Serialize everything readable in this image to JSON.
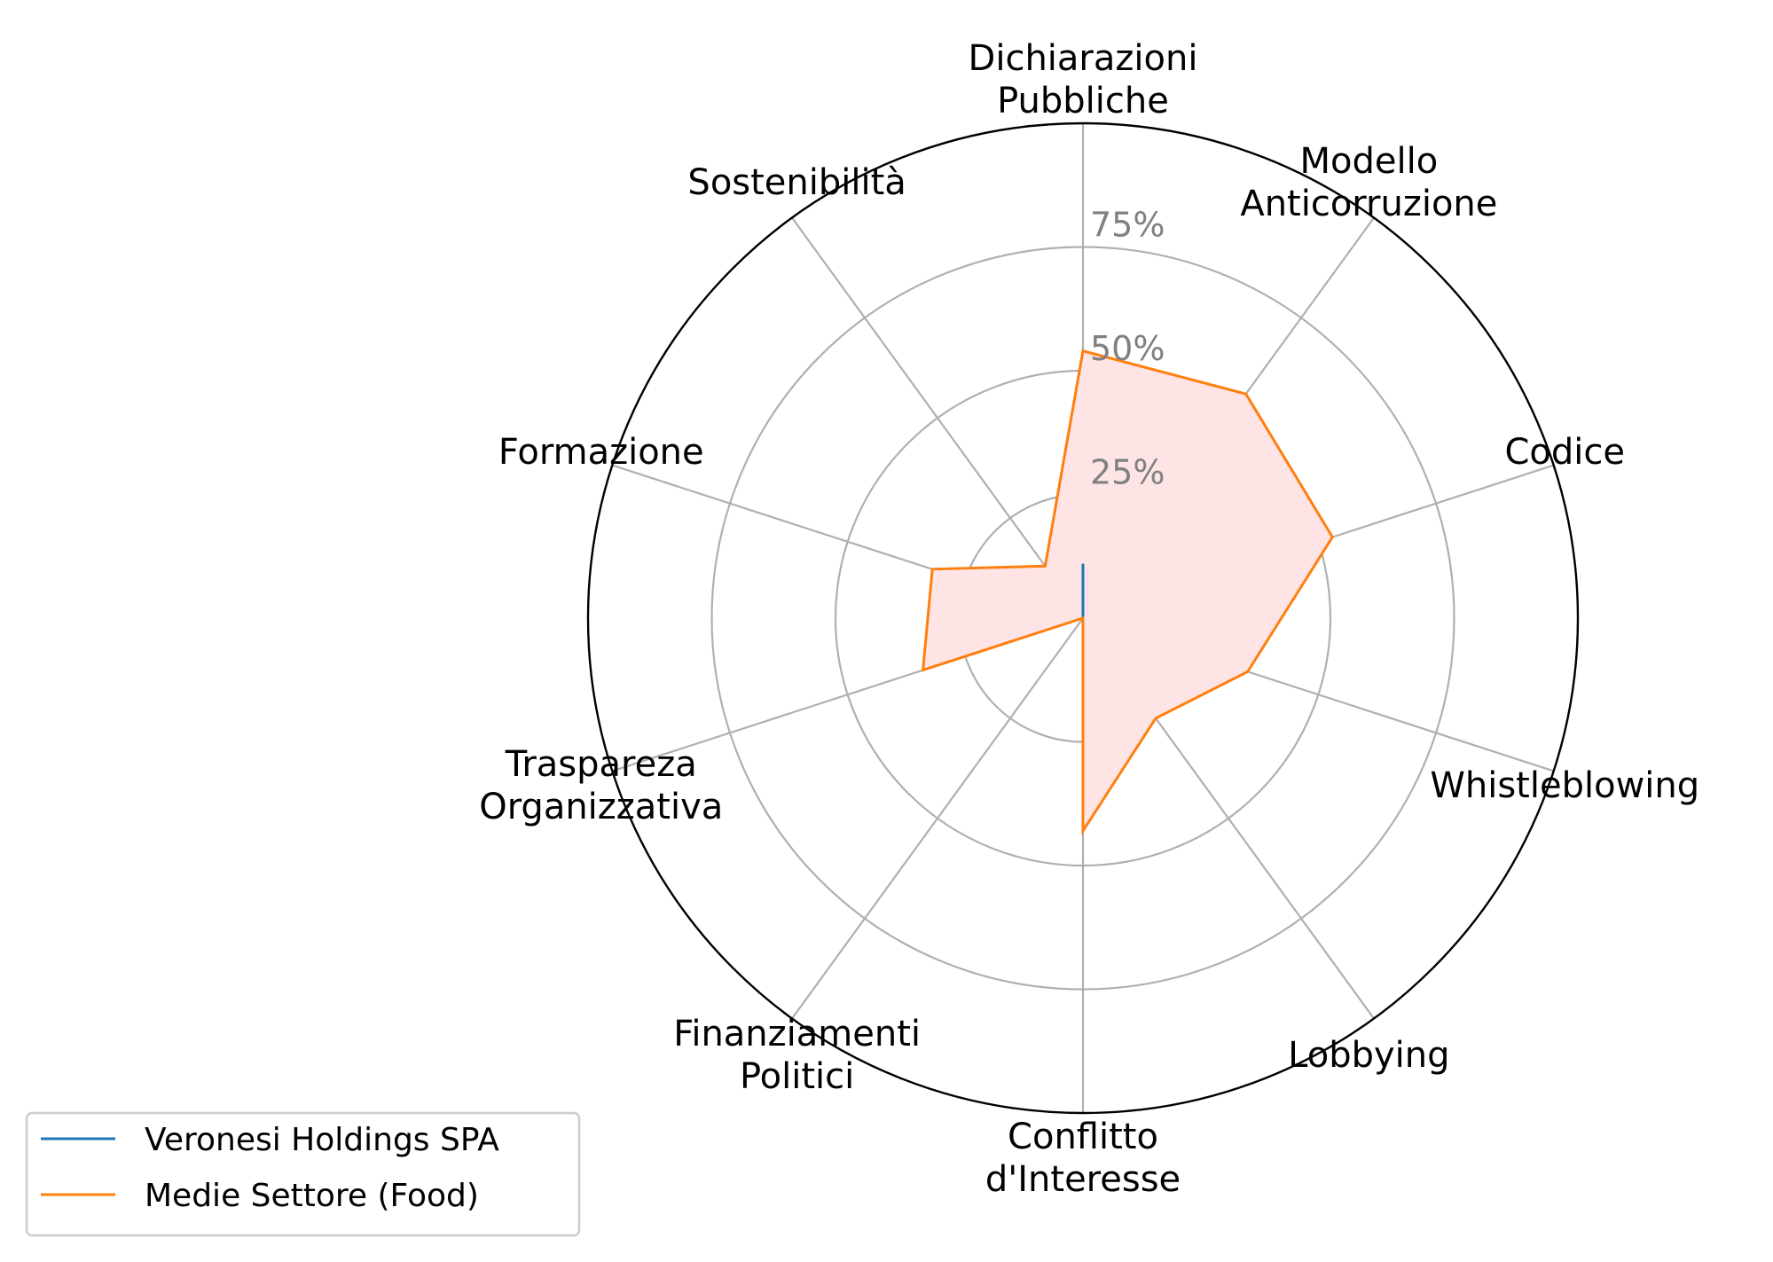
{
  "chart_data": {
    "type": "radar",
    "title": "",
    "categories": [
      [
        "Dichiarazioni",
        "Pubbliche"
      ],
      [
        "Modello",
        "Anticorruzione"
      ],
      [
        "Codice"
      ],
      [
        "Whistleblowing"
      ],
      [
        "Lobbying"
      ],
      [
        "Conflitto",
        "d'Interesse"
      ],
      [
        "Finanziamenti",
        "Politici"
      ],
      [
        "Traspareza",
        "Organizzativa"
      ],
      [
        "Formazione"
      ],
      [
        "Sostenibilità"
      ]
    ],
    "rlim": [
      0,
      100
    ],
    "rticks": [
      25,
      50,
      75
    ],
    "rtick_labels": [
      "25%",
      "50%",
      "75%"
    ],
    "grid": true,
    "legend": {
      "position": "bottom-left"
    },
    "series": [
      {
        "name": "Veronesi Holdings SPA",
        "color": "#1f77b4",
        "values": [
          11,
          0,
          0,
          0,
          0,
          0,
          0,
          0,
          0,
          0
        ]
      },
      {
        "name": "Medie Settore (Food)",
        "color": "#ff7f0e",
        "fill": "#ffe4e6",
        "values": [
          54,
          56,
          53,
          35,
          25,
          43,
          0,
          34,
          32,
          13
        ]
      }
    ]
  }
}
